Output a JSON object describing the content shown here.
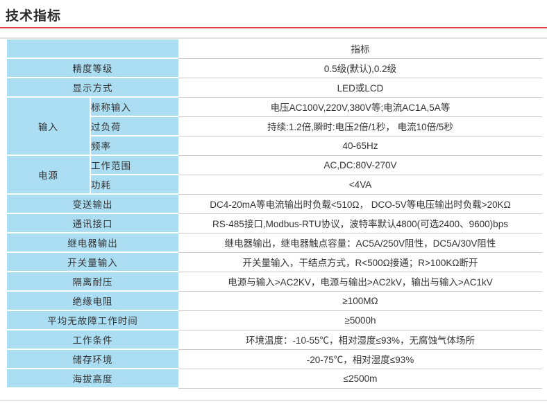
{
  "page": {
    "title": "技术指标",
    "accent_color": "#e5404b",
    "header_fill": "#abddf3",
    "grid_line_color": "#c9c9c9"
  },
  "table": {
    "value_header": "指标",
    "groups": {
      "input": "输入",
      "power": "电源"
    },
    "rows": [
      {
        "label": "精度等级",
        "value": "0.5级(默认),0.2级"
      },
      {
        "label": "显示方式",
        "value": "LED或LCD"
      },
      {
        "label": "标称输入",
        "value": "电压AC100V,220V,380V等;电流AC1A,5A等"
      },
      {
        "label": "过负荷",
        "value": "持续:1.2倍,瞬时:电压2倍/1秒， 电流10倍/5秒"
      },
      {
        "label": "频率",
        "value": "40-65Hz"
      },
      {
        "label": "工作范围",
        "value": "AC,DC:80V-270V"
      },
      {
        "label": "功耗",
        "value": "<4VA"
      },
      {
        "label": "变送输出",
        "value": "DC4-20mA等电流输出时负载<510Ω， DCO-5V等电压输出时负载>20KΩ"
      },
      {
        "label": "通讯接口",
        "value": "RS-485接口,Modbus-RTU协议，波特率默认4800(可选2400、9600)bps"
      },
      {
        "label": "继电器输出",
        "value": "继电器输出，继电器触点容量：AC5A/250V阻性，DC5A/30V阻性"
      },
      {
        "label": "开关量输入",
        "value": "开关量输入，干结点方式，R<500Ω接通；R>100KΩ断开"
      },
      {
        "label": "隔离耐压",
        "value": "电源与输入>AC2KV，电源与输出>AC2kV，输出与输入>AC1kV"
      },
      {
        "label": "绝缘电阻",
        "value": "≥100MΩ"
      },
      {
        "label": "平均无故障工作时间",
        "value": "≥5000h"
      },
      {
        "label": "工作条件",
        "value": "环境温度：-10-55℃，相对湿度≤93%，无腐蚀气体场所"
      },
      {
        "label": "储存环境",
        "value": "-20-75℃，相对湿度≤93%"
      },
      {
        "label": "海拔高度",
        "value": "≤2500m"
      }
    ]
  }
}
